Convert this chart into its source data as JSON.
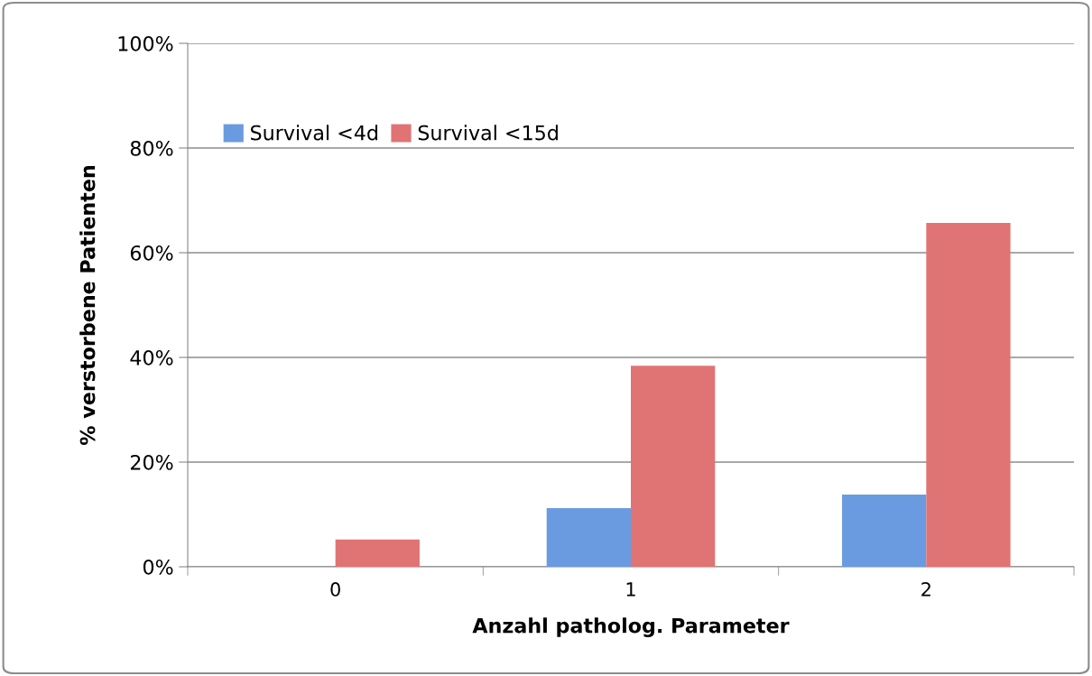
{
  "chart_data": {
    "type": "bar",
    "xlabel": "Anzahl patholog. Parameter",
    "ylabel": "% verstorbene Patienten",
    "categories": [
      "0",
      "1",
      "2"
    ],
    "series": [
      {
        "name": "Survival <4d",
        "color": "#6a9be0",
        "values": [
          0,
          11.2,
          13.8
        ]
      },
      {
        "name": "Survival <15d",
        "color": "#e07474",
        "values": [
          5.2,
          38.4,
          65.7
        ]
      }
    ],
    "ylim": [
      0,
      100
    ],
    "yticks": [
      {
        "value": 0,
        "label": "0%"
      },
      {
        "value": 20,
        "label": "20%"
      },
      {
        "value": 40,
        "label": "40%"
      },
      {
        "value": 60,
        "label": "60%"
      },
      {
        "value": 80,
        "label": "80%"
      },
      {
        "value": 100,
        "label": "100%"
      }
    ],
    "grid": "y",
    "legend": "top left"
  }
}
